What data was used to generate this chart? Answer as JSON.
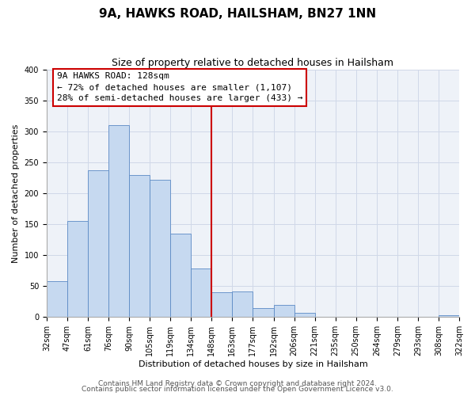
{
  "title": "9A, HAWKS ROAD, HAILSHAM, BN27 1NN",
  "subtitle": "Size of property relative to detached houses in Hailsham",
  "xlabel": "Distribution of detached houses by size in Hailsham",
  "ylabel": "Number of detached properties",
  "bar_labels": [
    "32sqm",
    "47sqm",
    "61sqm",
    "76sqm",
    "90sqm",
    "105sqm",
    "119sqm",
    "134sqm",
    "148sqm",
    "163sqm",
    "177sqm",
    "192sqm",
    "206sqm",
    "221sqm",
    "235sqm",
    "250sqm",
    "264sqm",
    "279sqm",
    "293sqm",
    "308sqm",
    "322sqm"
  ],
  "bar_values": [
    58,
    155,
    237,
    311,
    230,
    222,
    135,
    78,
    40,
    42,
    15,
    20,
    7,
    0,
    0,
    0,
    0,
    0,
    0,
    3
  ],
  "bar_color": "#c6d9f0",
  "bar_edge_color": "#5b8ac5",
  "vline_index": 7,
  "vline_color": "#cc0000",
  "ylim": [
    0,
    400
  ],
  "yticks": [
    0,
    50,
    100,
    150,
    200,
    250,
    300,
    350,
    400
  ],
  "annotation_title": "9A HAWKS ROAD: 128sqm",
  "annotation_line1": "← 72% of detached houses are smaller (1,107)",
  "annotation_line2": "28% of semi-detached houses are larger (433) →",
  "annotation_box_color": "#ffffff",
  "annotation_box_edge": "#cc0000",
  "footer1": "Contains HM Land Registry data © Crown copyright and database right 2024.",
  "footer2": "Contains public sector information licensed under the Open Government Licence v3.0.",
  "background_color": "#ffffff",
  "grid_color": "#d0d8e8",
  "title_fontsize": 11,
  "subtitle_fontsize": 9,
  "axis_label_fontsize": 8,
  "tick_fontsize": 7,
  "annotation_fontsize": 8,
  "footer_fontsize": 6.5
}
